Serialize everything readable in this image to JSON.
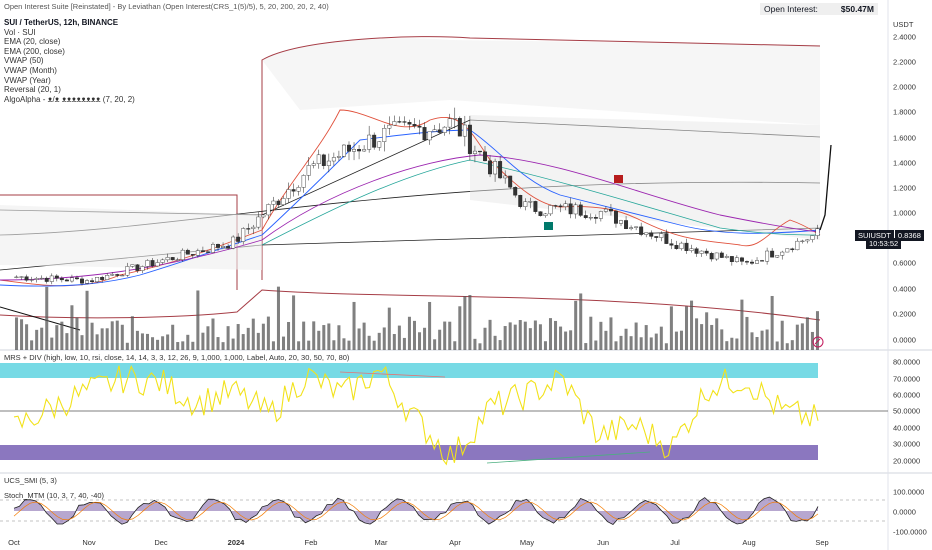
{
  "header": {
    "top_text": "Open Interest Suite [Reinstated] - By Leviathan (Open Interest(CRS_1(5)/5), 5, 20, 200, 20, 2, 40)",
    "open_interest_label": "Open Interest:",
    "open_interest_value": "$50.47M"
  },
  "legend": {
    "symbol": "SUI / TetherUS, 12h, BINANCE",
    "items": [
      "Vol · SUI",
      "EMA (20, close)",
      "EMA (200, close)",
      "VWAP (50)",
      "VWAP (Month)",
      "VWAP (Year)",
      "Reversal (20, 1)",
      "AlgoAlpha - ᴥ/ᴥ ᴥᴥᴥᴥᴥᴥᴥᴥ (7, 20, 2)"
    ]
  },
  "panes": {
    "rsi_title": "MRS + DIV (high, low, 10, rsi, close, 14, 14, 3, 3, 12, 26, 9, 1,000, 1,000, Label, Auto, 20, 30, 50, 70, 80)",
    "smi_title": "UCS_SMI (5, 3)",
    "stoch_title": "Stoch_MTM (10, 3, 7, 40, -40)"
  },
  "price_tag": {
    "symbol": "SUIUSDT",
    "price": "0.8368",
    "countdown": "10:53:52"
  },
  "colors": {
    "up": "#26a69a",
    "down": "#ef5350",
    "rsi_line": "#f2e21b",
    "overbought_band": "#5fd4e0",
    "oversold_band": "#7e68b8",
    "bb_band": "#a63d46"
  },
  "chart_data": [
    {
      "type": "line",
      "title": "SUI / TetherUS, 12h, BINANCE",
      "ylabel": "USDT",
      "ylim": [
        0,
        2.5
      ],
      "y_ticks": [
        "2.4000",
        "2.2000",
        "2.0000",
        "1.8000",
        "1.6000",
        "1.4000",
        "1.2000",
        "1.0000",
        "0.8000",
        "0.6000",
        "0.4000",
        "0.2000",
        "0.0000"
      ],
      "x_ticks": [
        "Oct",
        "Nov",
        "Dec",
        "2024",
        "Feb",
        "Mar",
        "Apr",
        "May",
        "Jun",
        "Jul",
        "Aug",
        "Sep"
      ],
      "series": [
        {
          "name": "SUIUSDT",
          "x": [
            "Oct",
            "Nov",
            "Dec",
            "2024",
            "Feb",
            "Mar",
            "Apr",
            "May",
            "Jun",
            "Jul",
            "Aug",
            "Sep"
          ],
          "values": [
            0.5,
            0.47,
            0.63,
            0.78,
            1.35,
            1.62,
            1.72,
            1.05,
            1.02,
            0.78,
            0.6,
            0.84
          ]
        }
      ]
    },
    {
      "type": "line",
      "title": "",
      "ylim": [
        15,
        85
      ],
      "y_ticks": [
        "80.0000",
        "70.0000",
        "60.0000",
        "50.0000",
        "40.0000",
        "30.0000",
        "20.0000"
      ],
      "series": [
        {
          "name": "",
          "values": [
            40,
            52,
            62,
            70,
            68,
            55,
            62,
            48,
            72,
            60,
            75,
            45,
            22,
            52,
            60,
            70,
            35,
            42,
            28,
            65,
            70,
            50,
            45
          ]
        }
      ]
    },
    {
      "type": "line",
      "title": "",
      "ylim": [
        -100,
        100
      ],
      "y_ticks": [
        "100.0000",
        "0.0000",
        "-100.0000"
      ]
    }
  ]
}
